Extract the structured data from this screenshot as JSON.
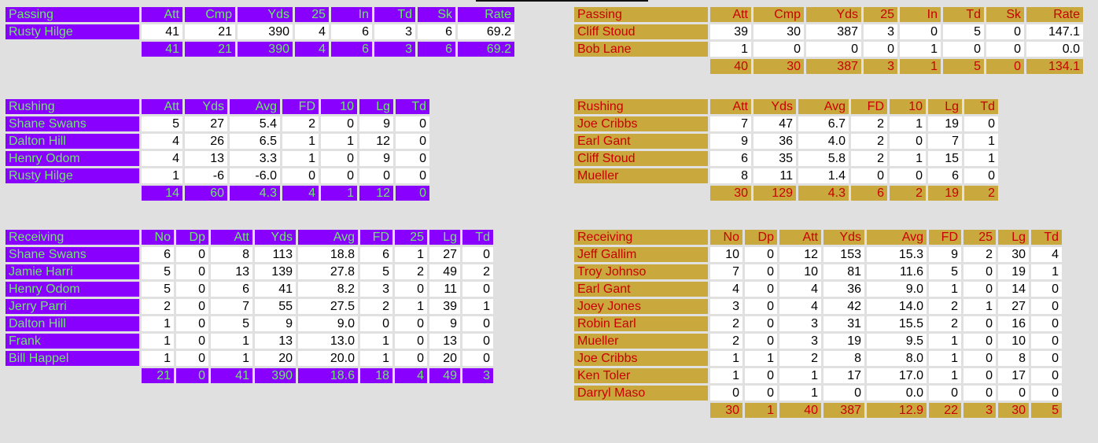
{
  "home": {
    "passing": {
      "headers": [
        "Passing",
        "Att",
        "Cmp",
        "Yds",
        "25",
        "In",
        "Td",
        "Sk",
        "Rate"
      ],
      "rows": [
        [
          "Rusty Hilge",
          "41",
          "21",
          "390",
          "4",
          "6",
          "3",
          "6",
          "69.2"
        ]
      ],
      "total": [
        "41",
        "21",
        "390",
        "4",
        "6",
        "3",
        "6",
        "69.2"
      ]
    },
    "rushing": {
      "headers": [
        "Rushing",
        "Att",
        "Yds",
        "Avg",
        "FD",
        "10",
        "Lg",
        "Td"
      ],
      "rows": [
        [
          "Shane Swans",
          "5",
          "27",
          "5.4",
          "2",
          "0",
          "9",
          "0"
        ],
        [
          "Dalton Hill",
          "4",
          "26",
          "6.5",
          "1",
          "1",
          "12",
          "0"
        ],
        [
          "Henry Odom",
          "4",
          "13",
          "3.3",
          "1",
          "0",
          "9",
          "0"
        ],
        [
          "Rusty Hilge",
          "1",
          "-6",
          "-6.0",
          "0",
          "0",
          "0",
          "0"
        ]
      ],
      "total": [
        "14",
        "60",
        "4.3",
        "4",
        "1",
        "12",
        "0"
      ]
    },
    "receiving": {
      "headers": [
        "Receiving",
        "No",
        "Dp",
        "Att",
        "Yds",
        "Avg",
        "FD",
        "25",
        "Lg",
        "Td"
      ],
      "rows": [
        [
          "Shane Swans",
          "6",
          "0",
          "8",
          "113",
          "18.8",
          "6",
          "1",
          "27",
          "0"
        ],
        [
          "Jamie Harri",
          "5",
          "0",
          "13",
          "139",
          "27.8",
          "5",
          "2",
          "49",
          "2"
        ],
        [
          "Henry Odom",
          "5",
          "0",
          "6",
          "41",
          "8.2",
          "3",
          "0",
          "11",
          "0"
        ],
        [
          "Jerry Parri",
          "2",
          "0",
          "7",
          "55",
          "27.5",
          "2",
          "1",
          "39",
          "1"
        ],
        [
          "Dalton Hill",
          "1",
          "0",
          "5",
          "9",
          "9.0",
          "0",
          "0",
          "9",
          "0"
        ],
        [
          "Frank",
          "1",
          "0",
          "1",
          "13",
          "13.0",
          "1",
          "0",
          "13",
          "0"
        ],
        [
          "Bill Happel",
          "1",
          "0",
          "1",
          "20",
          "20.0",
          "1",
          "0",
          "20",
          "0"
        ]
      ],
      "total": [
        "21",
        "0",
        "41",
        "390",
        "18.6",
        "18",
        "4",
        "49",
        "3"
      ]
    }
  },
  "away": {
    "passing": {
      "headers": [
        "Passing",
        "Att",
        "Cmp",
        "Yds",
        "25",
        "In",
        "Td",
        "Sk",
        "Rate"
      ],
      "rows": [
        [
          "Cliff Stoud",
          "39",
          "30",
          "387",
          "3",
          "0",
          "5",
          "0",
          "147.1"
        ],
        [
          "Bob Lane",
          "1",
          "0",
          "0",
          "0",
          "1",
          "0",
          "0",
          "0.0"
        ]
      ],
      "total": [
        "40",
        "30",
        "387",
        "3",
        "1",
        "5",
        "0",
        "134.1"
      ]
    },
    "rushing": {
      "headers": [
        "Rushing",
        "Att",
        "Yds",
        "Avg",
        "FD",
        "10",
        "Lg",
        "Td"
      ],
      "rows": [
        [
          "Joe Cribbs",
          "7",
          "47",
          "6.7",
          "2",
          "1",
          "19",
          "0"
        ],
        [
          "Earl Gant",
          "9",
          "36",
          "4.0",
          "2",
          "0",
          "7",
          "1"
        ],
        [
          "Cliff Stoud",
          "6",
          "35",
          "5.8",
          "2",
          "1",
          "15",
          "1"
        ],
        [
          "Mueller",
          "8",
          "11",
          "1.4",
          "0",
          "0",
          "6",
          "0"
        ]
      ],
      "total": [
        "30",
        "129",
        "4.3",
        "6",
        "2",
        "19",
        "2"
      ]
    },
    "receiving": {
      "headers": [
        "Receiving",
        "No",
        "Dp",
        "Att",
        "Yds",
        "Avg",
        "FD",
        "25",
        "Lg",
        "Td"
      ],
      "rows": [
        [
          "Jeff Gallim",
          "10",
          "0",
          "12",
          "153",
          "15.3",
          "9",
          "2",
          "30",
          "4"
        ],
        [
          "Troy Johnso",
          "7",
          "0",
          "10",
          "81",
          "11.6",
          "5",
          "0",
          "19",
          "1"
        ],
        [
          "Earl Gant",
          "4",
          "0",
          "4",
          "36",
          "9.0",
          "1",
          "0",
          "14",
          "0"
        ],
        [
          "Joey Jones",
          "3",
          "0",
          "4",
          "42",
          "14.0",
          "2",
          "1",
          "27",
          "0"
        ],
        [
          "Robin Earl",
          "2",
          "0",
          "3",
          "31",
          "15.5",
          "2",
          "0",
          "16",
          "0"
        ],
        [
          "Mueller",
          "2",
          "0",
          "3",
          "19",
          "9.5",
          "1",
          "0",
          "10",
          "0"
        ],
        [
          "Joe Cribbs",
          "1",
          "1",
          "2",
          "8",
          "8.0",
          "1",
          "0",
          "8",
          "0"
        ],
        [
          "Ken Toler",
          "1",
          "0",
          "1",
          "17",
          "17.0",
          "1",
          "0",
          "17",
          "0"
        ],
        [
          "Darryl Maso",
          "0",
          "0",
          "1",
          "0",
          "0.0",
          "0",
          "0",
          "0",
          "0"
        ]
      ],
      "total": [
        "30",
        "1",
        "40",
        "387",
        "12.9",
        "22",
        "3",
        "30",
        "5"
      ]
    }
  },
  "colors": {
    "home_bg": "#8a00ff",
    "home_fg": "#6de86d",
    "away_bg": "#c9a93e",
    "away_fg": "#c80000",
    "page_bg": "#e0e0e0"
  }
}
